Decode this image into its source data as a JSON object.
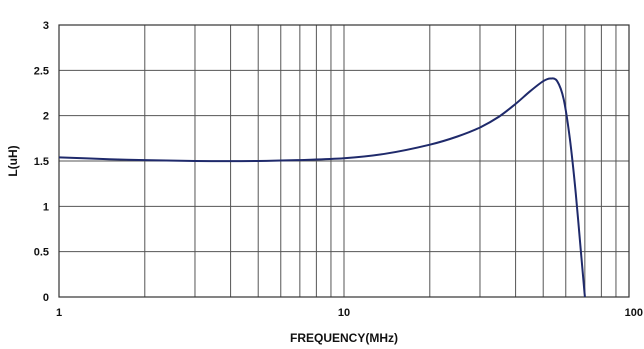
{
  "chart_data": {
    "type": "line",
    "title": "",
    "xlabel": "FREQUENCY(MHz)",
    "ylabel": "L(uH)",
    "xscale": "log",
    "xlim": [
      1,
      100
    ],
    "ylim": [
      0,
      3
    ],
    "grid": true,
    "x_tick_labels": [
      "1",
      "10",
      "100"
    ],
    "y_tick_labels": [
      "0",
      "0.5",
      "1",
      "1.5",
      "2",
      "2.5",
      "3"
    ],
    "line_color": "#1f2a6b",
    "series": [
      {
        "x": [
          1,
          1.5,
          2,
          3,
          5,
          7,
          10,
          14,
          20,
          25,
          30,
          35,
          40,
          45,
          50,
          53,
          56,
          59,
          62,
          65,
          68,
          70
        ],
        "y": [
          1.54,
          1.52,
          1.51,
          1.5,
          1.5,
          1.51,
          1.53,
          1.58,
          1.68,
          1.77,
          1.87,
          1.99,
          2.13,
          2.27,
          2.38,
          2.41,
          2.38,
          2.18,
          1.75,
          1.15,
          0.45,
          0.0
        ]
      }
    ]
  }
}
